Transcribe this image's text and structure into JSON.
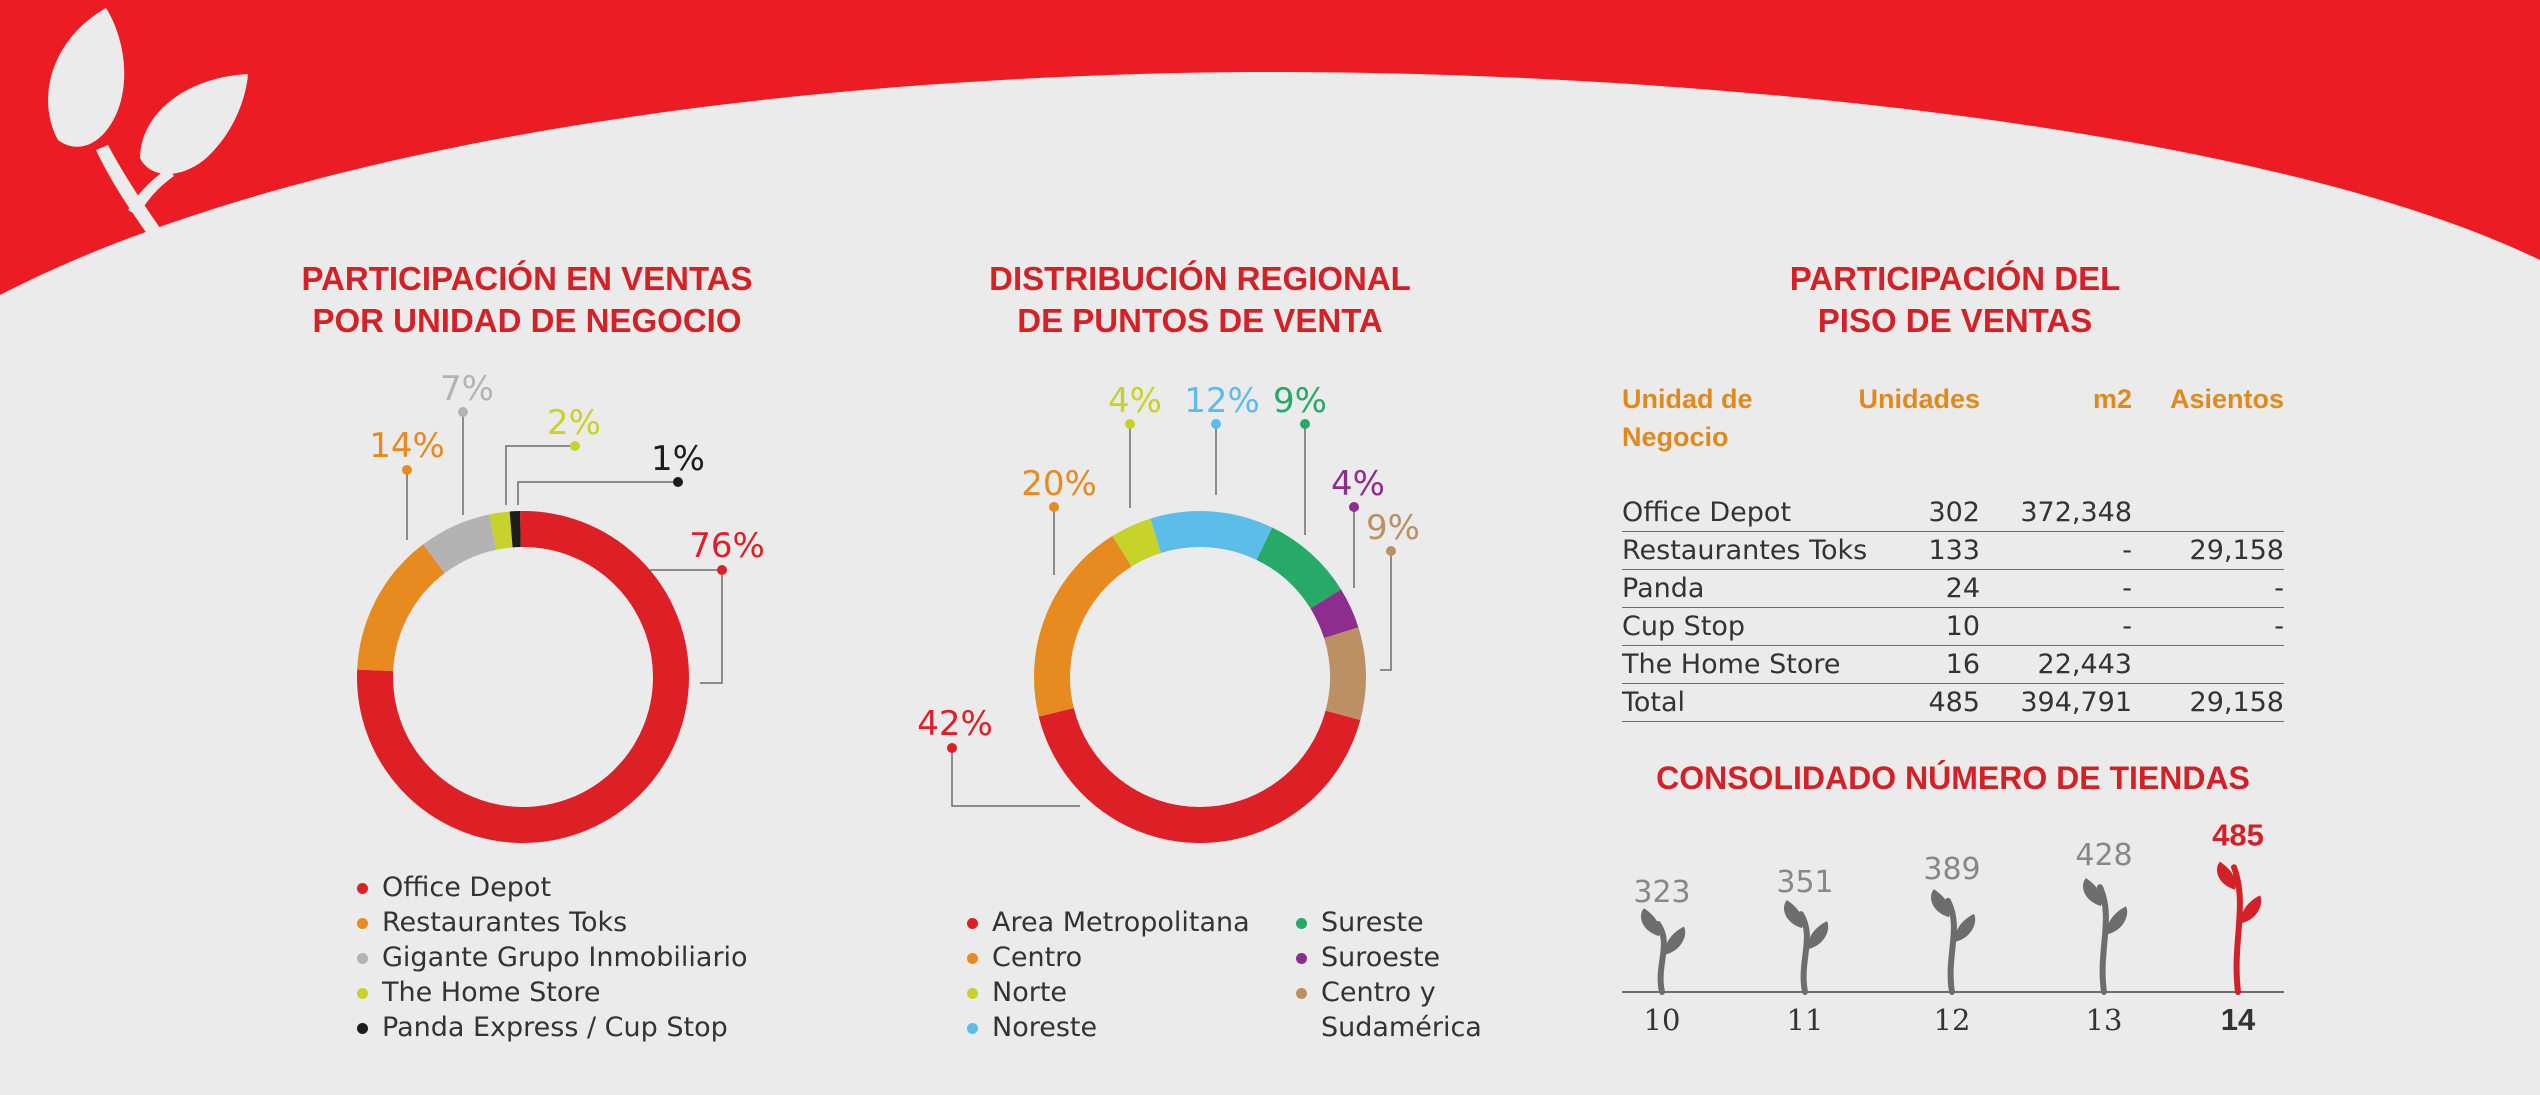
{
  "charts": {
    "sales_share": {
      "title_lines": [
        "PARTICIPACIÓN EN VENTAS",
        "POR UNIDAD DE NEGOCIO"
      ],
      "legend": [
        {
          "name": "Office Depot",
          "color": "#dd1f26"
        },
        {
          "name": "Restaurantes Toks",
          "color": "#e78a1f"
        },
        {
          "name": "Gigante Grupo Inmobiliario",
          "color": "#b3b3b3"
        },
        {
          "name": "The Home Store",
          "color": "#c7d22a"
        },
        {
          "name": "Panda Express / Cup Stop",
          "color": "#1d1d1b"
        }
      ]
    },
    "regional": {
      "title_lines": [
        "DISTRIBUCIÓN REGIONAL",
        "DE PUNTOS DE VENTA"
      ],
      "legend_col1": [
        {
          "name": "Area Metropolitana",
          "color": "#dd1f26"
        },
        {
          "name": "Centro",
          "color": "#e78a1f"
        },
        {
          "name": "Norte",
          "color": "#c7d22a"
        },
        {
          "name": "Noreste",
          "color": "#5bbde8"
        }
      ],
      "legend_col2": [
        {
          "name": "Sureste",
          "color": "#27a968"
        },
        {
          "name": "Suroeste",
          "color": "#8e2d8d"
        },
        {
          "name": "Centro y",
          "color": "#bb9064"
        },
        {
          "name": "Sudamérica",
          "color": ""
        }
      ]
    },
    "floor": {
      "title_lines": [
        "PARTICIPACIÓN DEL",
        "PISO DE VENTAS"
      ],
      "headers": {
        "unit_line1": "Unidad de",
        "unit_line2": "Negocio",
        "units": "Unidades",
        "m2": "m2",
        "seats": "Asientos"
      },
      "rows": [
        {
          "name": "Office Depot",
          "units": "302",
          "m2": "372,348",
          "seats": ""
        },
        {
          "name": "Restaurantes Toks",
          "units": "133",
          "m2": "-",
          "seats": "29,158"
        },
        {
          "name": "Panda",
          "units": "24",
          "m2": "-",
          "seats": "-"
        },
        {
          "name": "Cup Stop",
          "units": "10",
          "m2": "-",
          "seats": "-"
        },
        {
          "name": "The Home Store",
          "units": "16",
          "m2": "22,443",
          "seats": ""
        },
        {
          "name": "Total",
          "units": "485",
          "m2": "394,791",
          "seats": "29,158"
        }
      ]
    },
    "consolidated": {
      "title": "CONSOLIDADO NÚMERO DE TIENDAS"
    }
  },
  "chart_data": [
    {
      "type": "pie",
      "variant": "donut",
      "title": "PARTICIPACIÓN EN VENTAS POR UNIDAD DE NEGOCIO",
      "labels": [
        "Office Depot",
        "Restaurantes Toks",
        "Gigante Grupo Inmobiliario",
        "The Home Store",
        "Panda Express / Cup Stop"
      ],
      "values": [
        76,
        14,
        7,
        2,
        1
      ],
      "value_labels": [
        "76%",
        "14%",
        "7%",
        "2%",
        "1%"
      ],
      "colors": [
        "#dd1f26",
        "#e78a1f",
        "#b3b3b3",
        "#c7d22a",
        "#1d1d1b"
      ]
    },
    {
      "type": "pie",
      "variant": "donut",
      "title": "DISTRIBUCIÓN REGIONAL DE PUNTOS DE VENTA",
      "labels": [
        "Area Metropolitana",
        "Centro",
        "Norte",
        "Noreste",
        "Sureste",
        "Suroeste",
        "Centro y Sudamérica"
      ],
      "values": [
        42,
        20,
        4,
        12,
        9,
        4,
        9
      ],
      "value_labels": [
        "42%",
        "20%",
        "4%",
        "12%",
        "9%",
        "4%",
        "9%"
      ],
      "colors": [
        "#dd1f26",
        "#e78a1f",
        "#c7d22a",
        "#5bbde8",
        "#27a968",
        "#8e2d8d",
        "#bb9064"
      ]
    },
    {
      "type": "bar",
      "title": "CONSOLIDADO NÚMERO DE TIENDAS",
      "categories": [
        "10",
        "11",
        "12",
        "13",
        "14"
      ],
      "values": [
        323,
        351,
        389,
        428,
        485
      ],
      "value_labels": [
        "323",
        "351",
        "389",
        "428",
        "485"
      ],
      "highlight": "14",
      "colors": {
        "normal": "#6d6d6d",
        "highlight": "#d42027"
      }
    }
  ]
}
